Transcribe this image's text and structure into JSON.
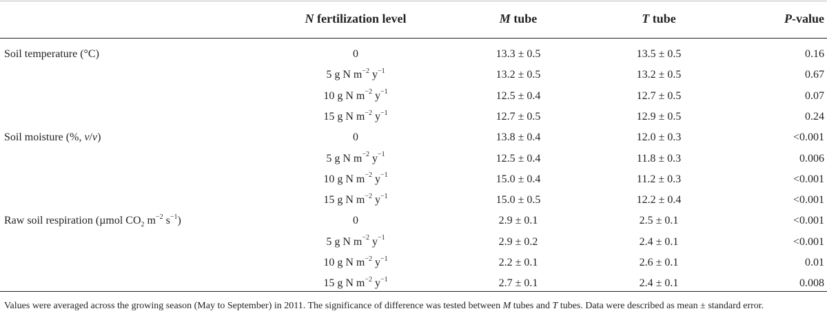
{
  "header": {
    "col1_italic": "N",
    "col1_rest": " fertilization level",
    "col2_italic": "M",
    "col2_rest": " tube",
    "col3_italic": "T",
    "col3_rest": " tube",
    "col4_italic": "P",
    "col4_rest": "-value"
  },
  "groups": {
    "temp_label": "Soil temperature (°C)",
    "moist_label_a": "Soil moisture (%, ",
    "moist_label_v1": "v",
    "moist_label_slash": "/",
    "moist_label_v2": "v",
    "moist_label_b": ")",
    "resp_label_a": "Raw soil respiration (µmol CO",
    "resp_label_sub": "2",
    "resp_label_b": " m",
    "resp_label_sup1": "−2",
    "resp_label_c": " s",
    "resp_label_sup2": "−1",
    "resp_label_d": ")"
  },
  "level_unit": {
    "n_m": " g N m",
    "exp_m": "−2",
    "y": " y",
    "exp_y": "−1"
  },
  "rows": [
    {
      "level": "0",
      "m": "13.3 ± 0.5",
      "t": "13.5 ± 0.5",
      "p": "0.16"
    },
    {
      "level": "5",
      "m": "13.2 ± 0.5",
      "t": "13.2 ± 0.5",
      "p": "0.67"
    },
    {
      "level": "10",
      "m": "12.5 ± 0.4",
      "t": "12.7 ± 0.5",
      "p": "0.07"
    },
    {
      "level": "15",
      "m": "12.7 ± 0.5",
      "t": "12.9 ± 0.5",
      "p": "0.24"
    },
    {
      "level": "0",
      "m": "13.8 ± 0.4",
      "t": "12.0 ± 0.3",
      "p": "<0.001"
    },
    {
      "level": "5",
      "m": "12.5 ± 0.4",
      "t": "11.8 ± 0.3",
      "p": "0.006"
    },
    {
      "level": "10",
      "m": "15.0 ± 0.4",
      "t": "11.2 ± 0.3",
      "p": "<0.001"
    },
    {
      "level": "15",
      "m": "15.0 ± 0.5",
      "t": "12.2 ± 0.4",
      "p": "<0.001"
    },
    {
      "level": "0",
      "m": "2.9 ± 0.1",
      "t": "2.5 ± 0.1",
      "p": "<0.001"
    },
    {
      "level": "5",
      "m": "2.9 ± 0.2",
      "t": "2.4 ± 0.1",
      "p": "<0.001"
    },
    {
      "level": "10",
      "m": "2.2 ± 0.1",
      "t": "2.6 ± 0.1",
      "p": "0.01"
    },
    {
      "level": "15",
      "m": "2.7 ± 0.1",
      "t": "2.4 ± 0.1",
      "p": "0.008"
    }
  ],
  "footnote": {
    "part1": "Values were averaged across the growing season (May to September) in 2011. The significance of difference was tested between ",
    "m": "M",
    "part2": " tubes and ",
    "t": "T",
    "part3": " tubes. Data were described as mean ± standard error."
  }
}
